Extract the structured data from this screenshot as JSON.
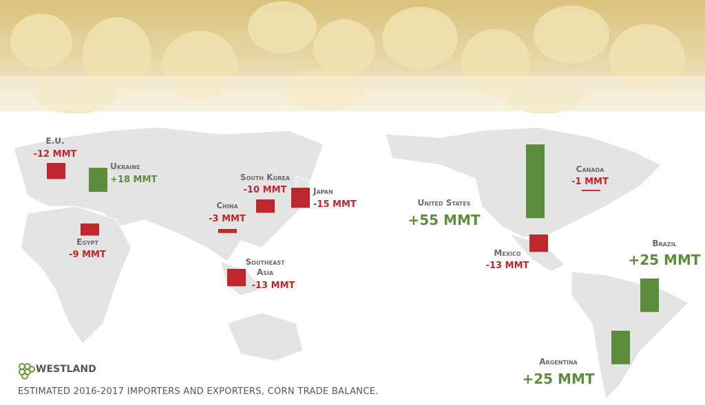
{
  "caption": "ESTIMATED 2016-2017 IMPORTERS AND EXPORTERS, CORN TRADE BALANCE.",
  "logo": "WESTLAND",
  "colors": {
    "import": "#c0272d",
    "export": "#5d8d3c"
  },
  "regions": [
    {
      "name": "E.U.",
      "value": -12,
      "value_label": "-12 MMT"
    },
    {
      "name": "Ukraine",
      "value": 18,
      "value_label": "+18 MMT"
    },
    {
      "name": "South Korea",
      "value": -10,
      "value_label": "-10 MMT"
    },
    {
      "name": "Japan",
      "value": -15,
      "value_label": "-15 MMT"
    },
    {
      "name": "China",
      "value": -3,
      "value_label": "-3 MMT"
    },
    {
      "name": "Egypt",
      "value": -9,
      "value_label": "-9 MMT"
    },
    {
      "name": "Southeast Asia",
      "value": -13,
      "value_label": "-13 MMT"
    },
    {
      "name": "United States",
      "value": 55,
      "value_label": "+55 MMT"
    },
    {
      "name": "Canada",
      "value": -1,
      "value_label": "-1 MMT"
    },
    {
      "name": "Mexico",
      "value": -13,
      "value_label": "-13 MMT"
    },
    {
      "name": "Brazil",
      "value": 25,
      "value_label": "+25 MMT"
    },
    {
      "name": "Argentina",
      "value": 25,
      "value_label": "+25 MMT"
    }
  ]
}
